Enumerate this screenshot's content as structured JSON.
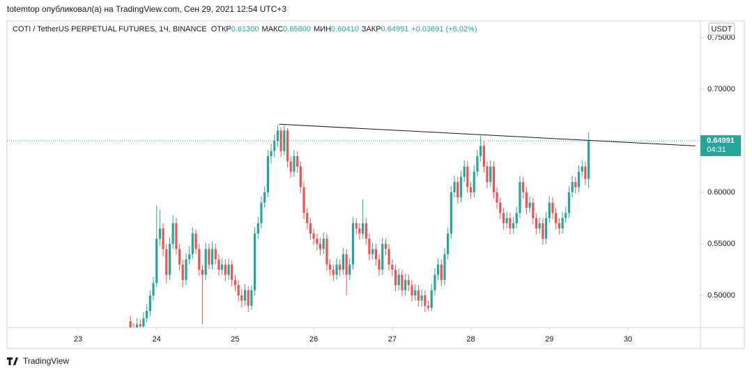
{
  "chart_data": {
    "type": "candlestick",
    "attribution": "totemtop опубликовал(а) на TradingView.com, Сен 29, 2021 12:54 UTC+3",
    "symbol": "COTI / TetherUS PERPETUAL FUTURES, 1Ч, BINANCE",
    "ohlc_legend": [
      {
        "label": "ОТКР",
        "value": "0.61300"
      },
      {
        "label": "МАКС",
        "value": "0.65800"
      },
      {
        "label": "МИН",
        "value": "0.60410"
      },
      {
        "label": "ЗАКР",
        "value": "0.64991"
      }
    ],
    "change": "+0.03691 (+6.02%)",
    "currency": "USDT",
    "brand": "TradingView",
    "up_color": "#26a69a",
    "down_color": "#ef5350",
    "x": [
      23.667,
      23.708,
      23.75,
      23.792,
      23.833,
      23.875,
      23.917,
      23.958,
      24,
      24.042,
      24.083,
      24.125,
      24.167,
      24.208,
      24.25,
      24.292,
      24.333,
      24.375,
      24.417,
      24.458,
      24.5,
      24.542,
      24.583,
      24.625,
      24.667,
      24.708,
      24.75,
      24.792,
      24.833,
      24.875,
      24.917,
      24.958,
      25,
      25.042,
      25.083,
      25.125,
      25.167,
      25.208,
      25.25,
      25.292,
      25.333,
      25.375,
      25.417,
      25.458,
      25.5,
      25.542,
      25.583,
      25.625,
      25.667,
      25.708,
      25.75,
      25.792,
      25.833,
      25.875,
      25.917,
      25.958,
      26,
      26.042,
      26.083,
      26.125,
      26.167,
      26.208,
      26.25,
      26.292,
      26.333,
      26.375,
      26.417,
      26.458,
      26.5,
      26.542,
      26.583,
      26.625,
      26.667,
      26.708,
      26.75,
      26.792,
      26.833,
      26.875,
      26.917,
      26.958,
      27,
      27.042,
      27.083,
      27.125,
      27.167,
      27.208,
      27.25,
      27.292,
      27.333,
      27.375,
      27.417,
      27.458,
      27.5,
      27.542,
      27.583,
      27.625,
      27.667,
      27.708,
      27.75,
      27.792,
      27.833,
      27.875,
      27.917,
      27.958,
      28,
      28.042,
      28.083,
      28.125,
      28.167,
      28.208,
      28.25,
      28.292,
      28.333,
      28.375,
      28.417,
      28.458,
      28.5,
      28.542,
      28.583,
      28.625,
      28.667,
      28.708,
      28.75,
      28.792,
      28.833,
      28.875,
      28.917,
      28.958,
      29,
      29.042,
      29.083,
      29.125,
      29.167,
      29.208,
      29.25,
      29.292,
      29.333,
      29.375,
      29.417,
      29.458,
      29.5
    ],
    "open": [
      0.475,
      0.468,
      0.466,
      0.472,
      0.47,
      0.478,
      0.485,
      0.5,
      0.512,
      0.555,
      0.565,
      0.545,
      0.52,
      0.55,
      0.57,
      0.545,
      0.53,
      0.515,
      0.535,
      0.54,
      0.56,
      0.545,
      0.525,
      0.52,
      0.545,
      0.53,
      0.545,
      0.535,
      0.525,
      0.53,
      0.52,
      0.53,
      0.515,
      0.51,
      0.5,
      0.495,
      0.505,
      0.49,
      0.505,
      0.56,
      0.57,
      0.59,
      0.6,
      0.635,
      0.64,
      0.65,
      0.66,
      0.64,
      0.66,
      0.63,
      0.62,
      0.635,
      0.625,
      0.605,
      0.58,
      0.57,
      0.56,
      0.555,
      0.55,
      0.545,
      0.555,
      0.53,
      0.525,
      0.52,
      0.53,
      0.525,
      0.54,
      0.52,
      0.53,
      0.57,
      0.565,
      0.56,
      0.57,
      0.555,
      0.54,
      0.545,
      0.535,
      0.525,
      0.55,
      0.545,
      0.53,
      0.525,
      0.51,
      0.52,
      0.505,
      0.515,
      0.51,
      0.5,
      0.505,
      0.495,
      0.5,
      0.49,
      0.488,
      0.505,
      0.52,
      0.53,
      0.515,
      0.54,
      0.56,
      0.6,
      0.61,
      0.595,
      0.615,
      0.625,
      0.605,
      0.6,
      0.62,
      0.635,
      0.645,
      0.625,
      0.61,
      0.625,
      0.6,
      0.59,
      0.58,
      0.57,
      0.575,
      0.565,
      0.57,
      0.58,
      0.61,
      0.6,
      0.585,
      0.59,
      0.575,
      0.565,
      0.57,
      0.555,
      0.575,
      0.59,
      0.58,
      0.57,
      0.565,
      0.575,
      0.58,
      0.6,
      0.61,
      0.605,
      0.62,
      0.625,
      0.613
    ],
    "high": [
      0.48,
      0.473,
      0.478,
      0.477,
      0.484,
      0.492,
      0.505,
      0.518,
      0.587,
      0.583,
      0.57,
      0.55,
      0.556,
      0.578,
      0.575,
      0.55,
      0.535,
      0.541,
      0.548,
      0.566,
      0.564,
      0.55,
      0.53,
      0.551,
      0.55,
      0.552,
      0.55,
      0.54,
      0.536,
      0.535,
      0.536,
      0.534,
      0.52,
      0.515,
      0.506,
      0.511,
      0.509,
      0.51,
      0.566,
      0.576,
      0.596,
      0.606,
      0.641,
      0.647,
      0.656,
      0.665,
      0.663,
      0.665,
      0.662,
      0.635,
      0.641,
      0.64,
      0.63,
      0.61,
      0.585,
      0.575,
      0.565,
      0.56,
      0.556,
      0.561,
      0.56,
      0.535,
      0.53,
      0.536,
      0.535,
      0.546,
      0.545,
      0.536,
      0.576,
      0.575,
      0.57,
      0.593,
      0.575,
      0.56,
      0.551,
      0.55,
      0.54,
      0.556,
      0.555,
      0.55,
      0.535,
      0.53,
      0.526,
      0.525,
      0.521,
      0.52,
      0.515,
      0.511,
      0.51,
      0.506,
      0.505,
      0.495,
      0.511,
      0.526,
      0.536,
      0.535,
      0.546,
      0.566,
      0.606,
      0.616,
      0.615,
      0.621,
      0.631,
      0.63,
      0.61,
      0.626,
      0.641,
      0.655,
      0.65,
      0.63,
      0.631,
      0.63,
      0.605,
      0.595,
      0.585,
      0.581,
      0.58,
      0.576,
      0.586,
      0.616,
      0.615,
      0.605,
      0.596,
      0.595,
      0.58,
      0.576,
      0.575,
      0.581,
      0.596,
      0.595,
      0.585,
      0.575,
      0.581,
      0.586,
      0.606,
      0.616,
      0.615,
      0.626,
      0.631,
      0.63,
      0.658
    ],
    "low": [
      0.463,
      0.46,
      0.462,
      0.465,
      0.466,
      0.474,
      0.48,
      0.495,
      0.508,
      0.548,
      0.538,
      0.512,
      0.515,
      0.545,
      0.54,
      0.524,
      0.508,
      0.51,
      0.53,
      0.535,
      0.54,
      0.519,
      0.472,
      0.515,
      0.525,
      0.525,
      0.53,
      0.519,
      0.52,
      0.514,
      0.515,
      0.509,
      0.504,
      0.494,
      0.488,
      0.49,
      0.484,
      0.486,
      0.5,
      0.555,
      0.565,
      0.585,
      0.595,
      0.628,
      0.634,
      0.644,
      0.634,
      0.636,
      0.624,
      0.614,
      0.615,
      0.619,
      0.599,
      0.574,
      0.564,
      0.554,
      0.549,
      0.544,
      0.539,
      0.54,
      0.524,
      0.519,
      0.514,
      0.515,
      0.519,
      0.52,
      0.5,
      0.515,
      0.525,
      0.559,
      0.554,
      0.555,
      0.549,
      0.534,
      0.535,
      0.529,
      0.519,
      0.52,
      0.539,
      0.524,
      0.519,
      0.504,
      0.505,
      0.499,
      0.5,
      0.504,
      0.494,
      0.495,
      0.489,
      0.489,
      0.484,
      0.485,
      0.485,
      0.5,
      0.515,
      0.509,
      0.51,
      0.535,
      0.555,
      0.595,
      0.589,
      0.59,
      0.61,
      0.599,
      0.594,
      0.595,
      0.615,
      0.63,
      0.619,
      0.604,
      0.605,
      0.594,
      0.584,
      0.574,
      0.564,
      0.565,
      0.559,
      0.56,
      0.565,
      0.575,
      0.594,
      0.579,
      0.58,
      0.569,
      0.559,
      0.56,
      0.549,
      0.55,
      0.57,
      0.574,
      0.564,
      0.559,
      0.56,
      0.57,
      0.575,
      0.595,
      0.599,
      0.6,
      0.615,
      0.607,
      0.6041
    ],
    "close": [
      0.468,
      0.466,
      0.472,
      0.47,
      0.478,
      0.485,
      0.5,
      0.512,
      0.555,
      0.565,
      0.545,
      0.52,
      0.55,
      0.57,
      0.545,
      0.53,
      0.515,
      0.535,
      0.54,
      0.56,
      0.545,
      0.525,
      0.52,
      0.545,
      0.53,
      0.545,
      0.535,
      0.525,
      0.53,
      0.52,
      0.53,
      0.515,
      0.51,
      0.5,
      0.495,
      0.505,
      0.49,
      0.505,
      0.56,
      0.57,
      0.59,
      0.6,
      0.635,
      0.64,
      0.65,
      0.66,
      0.64,
      0.66,
      0.63,
      0.62,
      0.635,
      0.625,
      0.605,
      0.58,
      0.57,
      0.56,
      0.555,
      0.55,
      0.545,
      0.555,
      0.53,
      0.525,
      0.52,
      0.53,
      0.525,
      0.54,
      0.52,
      0.53,
      0.57,
      0.565,
      0.56,
      0.57,
      0.555,
      0.54,
      0.545,
      0.535,
      0.525,
      0.55,
      0.545,
      0.53,
      0.525,
      0.51,
      0.52,
      0.505,
      0.515,
      0.51,
      0.5,
      0.505,
      0.495,
      0.5,
      0.49,
      0.488,
      0.505,
      0.52,
      0.53,
      0.515,
      0.54,
      0.56,
      0.6,
      0.61,
      0.595,
      0.615,
      0.625,
      0.605,
      0.6,
      0.62,
      0.635,
      0.645,
      0.625,
      0.61,
      0.625,
      0.6,
      0.59,
      0.58,
      0.57,
      0.575,
      0.565,
      0.57,
      0.58,
      0.61,
      0.6,
      0.585,
      0.59,
      0.575,
      0.565,
      0.57,
      0.555,
      0.575,
      0.59,
      0.58,
      0.57,
      0.565,
      0.575,
      0.58,
      0.6,
      0.61,
      0.605,
      0.62,
      0.625,
      0.613,
      0.64991
    ],
    "xlim": [
      22.095,
      30.923
    ],
    "xticks": [
      23,
      24,
      25,
      26,
      27,
      28,
      29,
      30
    ],
    "ylim": [
      0.4689,
      0.7662
    ],
    "yticks": [
      {
        "value": 0.5,
        "label": "0.50000"
      },
      {
        "value": 0.55,
        "label": "0.55000"
      },
      {
        "value": 0.6,
        "label": "0.60000"
      },
      {
        "value": 0.7,
        "label": "0.70000"
      },
      {
        "value": 0.75,
        "label": "0.75000"
      }
    ],
    "last_price": {
      "value": 0.64991,
      "label": "0.64991"
    },
    "countdown": "04:31",
    "trendline": {
      "x": [
        25.56,
        30.86
      ],
      "y": [
        0.666,
        0.645
      ],
      "color": "#131722"
    },
    "grid": false
  }
}
